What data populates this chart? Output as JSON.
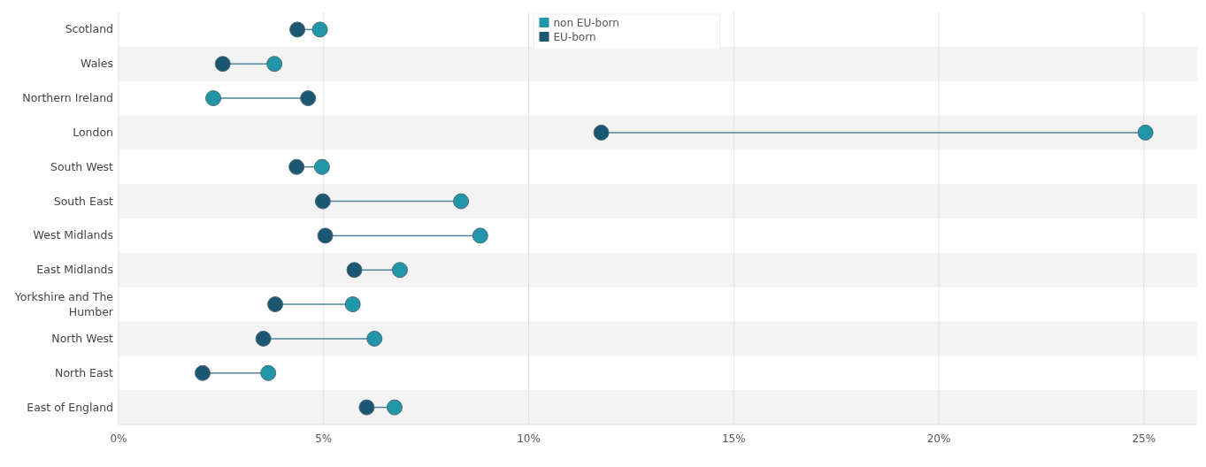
{
  "chart_data": {
    "type": "scatter",
    "orientation": "horizontal",
    "categories": [
      "Scotland",
      "Wales",
      "Northern Ireland",
      "London",
      "South West",
      "South East",
      "West Midlands",
      "East Midlands",
      "Yorkshire and The Humber",
      "North West",
      "North East",
      "East of England"
    ],
    "series": [
      {
        "name": "non EU-born",
        "color": "#2196a8",
        "values": [
          4.91,
          3.8,
          2.31,
          25.04,
          4.96,
          8.35,
          8.82,
          6.86,
          5.71,
          6.24,
          3.65,
          6.73
        ]
      },
      {
        "name": "EU-born",
        "color": "#1b5672",
        "values": [
          4.36,
          2.54,
          4.62,
          11.77,
          4.34,
          4.98,
          5.04,
          5.75,
          3.82,
          3.53,
          2.05,
          6.05
        ]
      }
    ],
    "xlim": [
      0,
      26.3
    ],
    "xticks": [
      {
        "value": 0,
        "label": "0%"
      },
      {
        "value": 5,
        "label": "5%"
      },
      {
        "value": 10,
        "label": "10%"
      },
      {
        "value": 15,
        "label": "15%"
      },
      {
        "value": 20,
        "label": "20%"
      },
      {
        "value": 25,
        "label": "25%"
      }
    ],
    "grid": "x",
    "legend": "top",
    "marker": "circle"
  }
}
